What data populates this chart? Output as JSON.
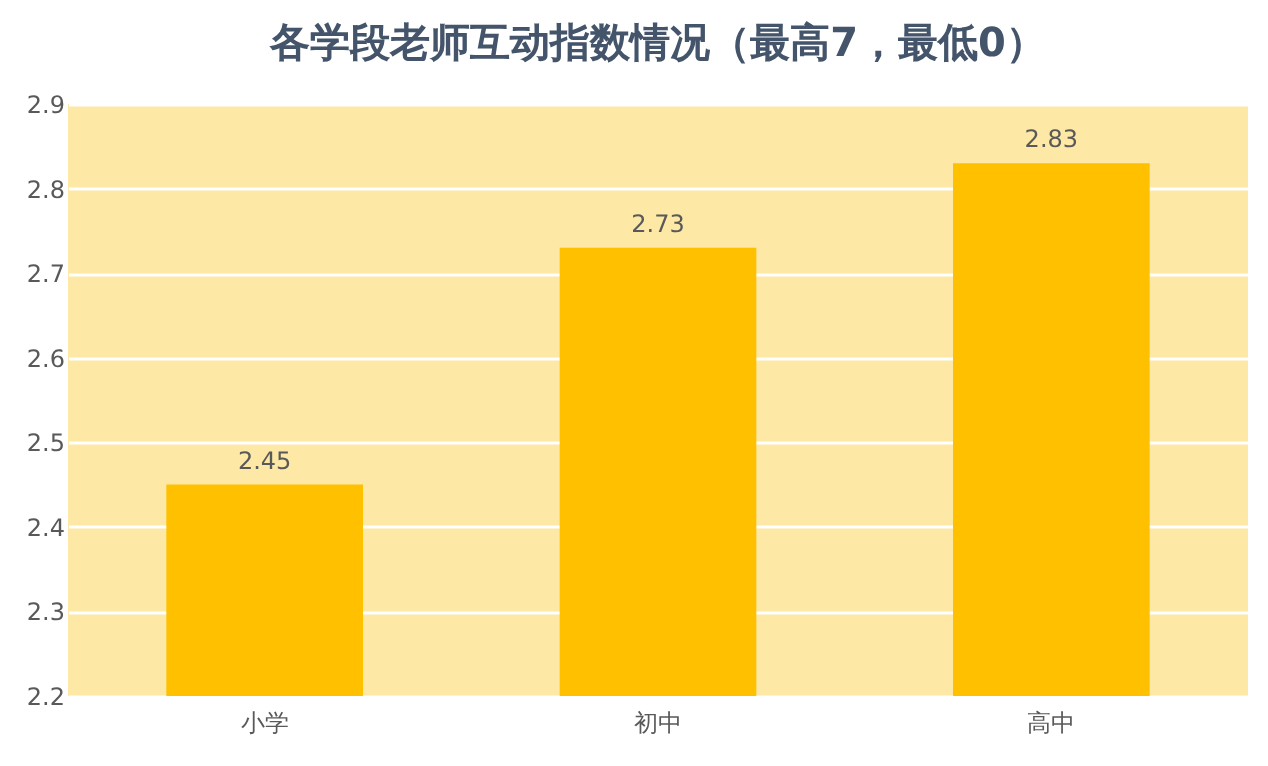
{
  "chart_data": {
    "type": "bar",
    "title": "各学段老师互动指数情况（最高7，最低0）",
    "categories": [
      "小学",
      "初中",
      "高中"
    ],
    "values": [
      2.45,
      2.73,
      2.83
    ],
    "color": "#ffc000",
    "ylim": [
      2.2,
      2.9
    ],
    "yticks": [
      2.2,
      2.3,
      2.4,
      2.5,
      2.6,
      2.7,
      2.8,
      2.9
    ],
    "grid": "y",
    "data_labels": true
  }
}
